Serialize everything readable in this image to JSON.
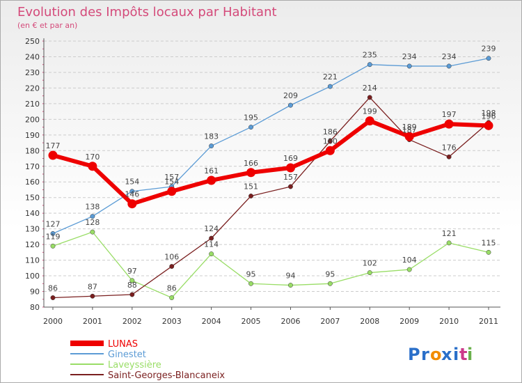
{
  "chart_data": {
    "type": "line",
    "title": "Evolution des Impôts locaux par Habitant",
    "subtitle": "(en € et par an)",
    "xlabel": "",
    "ylabel": "",
    "x": [
      "2000",
      "2001",
      "2002",
      "2003",
      "2004",
      "2005",
      "2006",
      "2007",
      "2008",
      "2009",
      "2010",
      "2011"
    ],
    "ylim": [
      80,
      250
    ],
    "yticks": [
      80,
      90,
      100,
      110,
      120,
      130,
      140,
      150,
      160,
      170,
      180,
      190,
      200,
      210,
      220,
      230,
      240,
      250
    ],
    "grid": "horizontal dashed",
    "legend_position": "bottom-left",
    "series": [
      {
        "name": "LUNAS",
        "color": "#ee0000",
        "values": [
          177,
          170,
          146,
          154,
          161,
          166,
          169,
          180,
          199,
          189,
          197,
          196
        ]
      },
      {
        "name": "Ginestet",
        "color": "#5b9bd5",
        "values": [
          127,
          138,
          154,
          157,
          183,
          195,
          209,
          221,
          235,
          234,
          234,
          239
        ]
      },
      {
        "name": "Laveyssière",
        "color": "#99dd66",
        "values": [
          119,
          128,
          97,
          86,
          114,
          95,
          94,
          95,
          102,
          104,
          121,
          115
        ]
      },
      {
        "name": "Saint-Georges-Blancaneix",
        "color": "#7a1f1f",
        "values": [
          86,
          87,
          88,
          106,
          124,
          151,
          157,
          186,
          214,
          187,
          176,
          198
        ]
      }
    ]
  },
  "logo": {
    "text": "Proxiti",
    "letters": [
      "P",
      "r",
      "o",
      "x",
      "i",
      "t",
      "i"
    ],
    "colors": [
      "#2a6fc9",
      "#2a6fc9",
      "#f28c00",
      "#2a6fc9",
      "#2a6fc9",
      "#cc3a8a",
      "#6ab04c"
    ]
  }
}
